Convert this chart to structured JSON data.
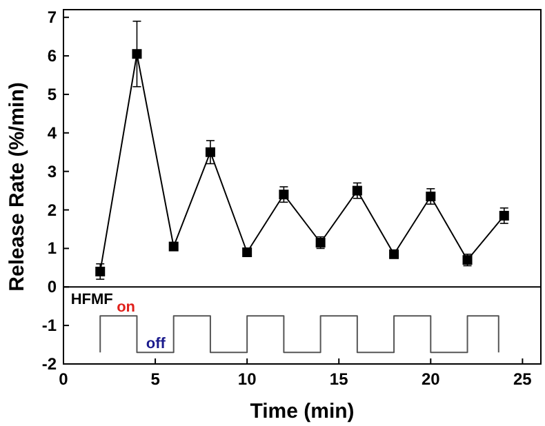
{
  "chart_data": {
    "type": "line",
    "xlabel": "Time (min)",
    "ylabel": "Release Rate (%/min)",
    "xlim": [
      0,
      26
    ],
    "xticks": [
      0,
      5,
      10,
      15,
      20,
      25
    ],
    "ylim": [
      -2,
      7.2
    ],
    "yticks": [
      -2,
      -1,
      0,
      1,
      2,
      3,
      4,
      5,
      6,
      7
    ],
    "grid": false,
    "series": [
      {
        "color": "#000000",
        "marker": "square",
        "x": [
          2,
          4,
          6,
          8,
          10,
          12,
          14,
          16,
          18,
          20,
          22,
          24
        ],
        "values": [
          0.4,
          6.05,
          1.05,
          3.5,
          0.9,
          2.4,
          1.15,
          2.5,
          0.85,
          2.35,
          0.7,
          1.85
        ],
        "errors": [
          0.2,
          0.85,
          0.1,
          0.3,
          0.1,
          0.2,
          0.15,
          0.2,
          0.1,
          0.2,
          0.15,
          0.2
        ]
      },
      {
        "color": "#555555",
        "marker": "none",
        "x": [
          2,
          2,
          4,
          4,
          6,
          6,
          8,
          8,
          10,
          10,
          12,
          12,
          14,
          14,
          16,
          16,
          18,
          18,
          20,
          20,
          22,
          22,
          23.7,
          23.7
        ],
        "values": [
          -1.7,
          -0.75,
          -0.75,
          -1.7,
          -1.7,
          -0.75,
          -0.75,
          -1.7,
          -1.7,
          -0.75,
          -0.75,
          -1.7,
          -1.7,
          -0.75,
          -0.75,
          -1.7,
          -1.7,
          -0.75,
          -0.75,
          -1.7,
          -1.7,
          -0.75,
          -0.75,
          -1.7
        ]
      }
    ],
    "ref_lines": [
      {
        "axis": "y",
        "value": 0,
        "color": "#000000"
      }
    ],
    "annotations": [
      "HFMF",
      "on",
      "off"
    ]
  }
}
